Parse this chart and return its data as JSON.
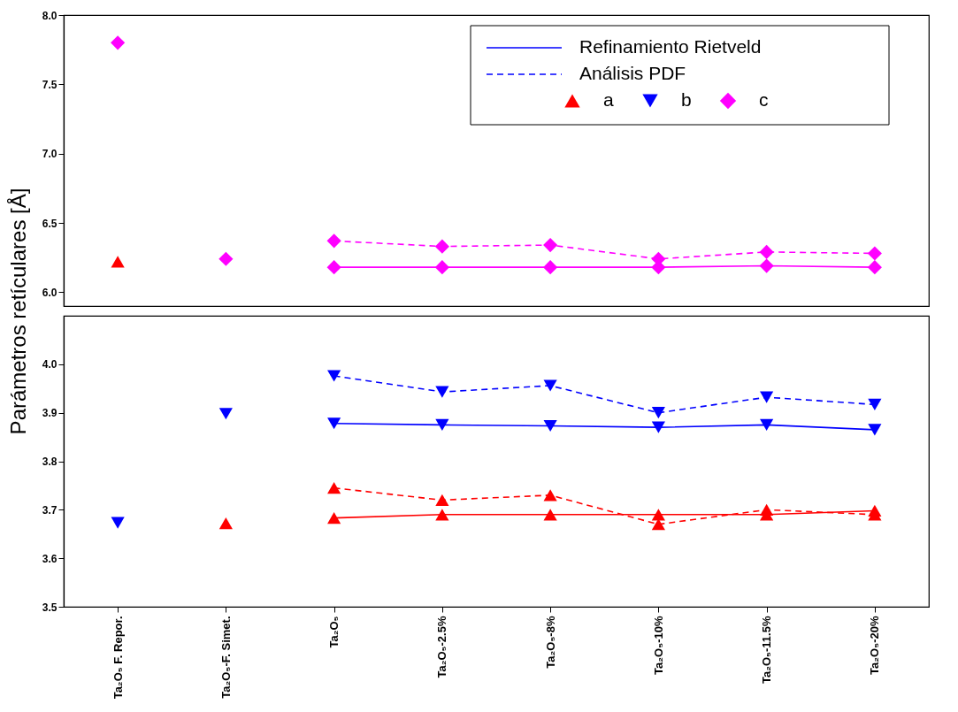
{
  "chart_data": [
    {
      "type": "scatter",
      "categories": [
        "Ta₂O₅ F. Repor.",
        "Ta₂O₅-F. Simet.",
        "Ta₂O₅",
        "Ta₂O₅-2.5%",
        "Ta₂O₅-8%",
        "Ta₂O₅-10%",
        "Ta₂O₅-11.5%",
        "Ta₂O₅-20%"
      ],
      "ylim": [
        5.9,
        8.0
      ],
      "yticks": [
        {
          "value": 6,
          "label": "6.0"
        },
        6.5,
        {
          "value": 7,
          "label": "7.0"
        },
        7.5,
        {
          "value": 8,
          "label": "8.0"
        }
      ],
      "tick_labels": "y",
      "legend": "top right",
      "series": [
        {
          "type": "line",
          "line_style": "solid",
          "color": "#ff00ff",
          "values": [
            null,
            null,
            6.18,
            6.18,
            6.18,
            6.18,
            6.19,
            6.18
          ]
        },
        {
          "type": "line",
          "line_style": "dashed",
          "color": "#ff00ff",
          "values": [
            null,
            null,
            6.37,
            6.33,
            6.34,
            6.24,
            6.29,
            6.28
          ]
        },
        {
          "type": "scatter",
          "marker": "triangle",
          "color": "#ff0000",
          "x": [
            "Ta₂O₅ F. Repor."
          ],
          "values": [
            6.22
          ]
        },
        {
          "name": "c",
          "type": "scatter",
          "marker": "diamond",
          "color": "#ff00ff",
          "x": [
            "Ta₂O₅ F. Repor.",
            "Ta₂O₅-F. Simet.",
            "Ta₂O₅",
            "Ta₂O₅",
            "Ta₂O₅-2.5%",
            "Ta₂O₅-2.5%",
            "Ta₂O₅-8%",
            "Ta₂O₅-8%",
            "Ta₂O₅-10%",
            "Ta₂O₅-10%",
            "Ta₂O₅-11.5%",
            "Ta₂O₅-11.5%",
            "Ta₂O₅-20%",
            "Ta₂O₅-20%"
          ],
          "values": [
            7.8,
            6.24,
            6.37,
            6.18,
            6.33,
            6.18,
            6.34,
            6.18,
            6.24,
            6.18,
            6.29,
            6.19,
            6.28,
            6.18
          ]
        }
      ]
    },
    {
      "type": "scatter",
      "categories": [
        "Ta₂O₅ F. Repor.",
        "Ta₂O₅-F. Simet.",
        "Ta₂O₅",
        "Ta₂O₅-2.5%",
        "Ta₂O₅-8%",
        "Ta₂O₅-10%",
        "Ta₂O₅-11.5%",
        "Ta₂O₅-20%"
      ],
      "ylabel": "Parámetros retículares [Å]",
      "legend": "top right",
      "ylim": [
        3.5,
        4.1
      ],
      "yticks": [
        3.5,
        3.6,
        3.7,
        3.8,
        3.9,
        {
          "value": 4,
          "label": "4.0"
        }
      ],
      "series": [
        {
          "name": "Refinamiento Rietveld",
          "type": "line",
          "line_style": "solid",
          "color": "#0000ff",
          "values": [
            null,
            null,
            3.878,
            3.875,
            3.873,
            3.87,
            3.875,
            3.865
          ]
        },
        {
          "name": "Análisis PDF",
          "type": "line",
          "line_style": "dashed",
          "color": "#0000ff",
          "values": [
            null,
            null,
            3.976,
            3.943,
            3.956,
            3.9,
            3.932,
            3.917
          ]
        },
        {
          "type": "line",
          "line_style": "solid",
          "color": "#ff0000",
          "values": [
            null,
            null,
            3.683,
            3.69,
            3.69,
            3.69,
            3.69,
            3.698
          ]
        },
        {
          "type": "line",
          "line_style": "dashed",
          "color": "#ff0000",
          "values": [
            null,
            null,
            3.745,
            3.72,
            3.73,
            3.67,
            3.7,
            3.69
          ]
        },
        {
          "name": "a",
          "type": "scatter",
          "marker": "triangle",
          "color": "#ff0000",
          "x": [
            "Ta₂O₅-F. Simet.",
            "Ta₂O₅",
            "Ta₂O₅",
            "Ta₂O₅-2.5%",
            "Ta₂O₅-2.5%",
            "Ta₂O₅-8%",
            "Ta₂O₅-8%",
            "Ta₂O₅-10%",
            "Ta₂O₅-10%",
            "Ta₂O₅-11.5%",
            "Ta₂O₅-11.5%",
            "Ta₂O₅-20%",
            "Ta₂O₅-20%"
          ],
          "values": [
            3.672,
            3.745,
            3.683,
            3.72,
            3.69,
            3.73,
            3.69,
            3.67,
            3.69,
            3.7,
            3.69,
            3.69,
            3.698
          ]
        },
        {
          "name": "b",
          "type": "scatter",
          "marker": "triangle-down",
          "color": "#0000ff",
          "x": [
            "Ta₂O₅ F. Repor.",
            "Ta₂O₅-F. Simet.",
            "Ta₂O₅",
            "Ta₂O₅",
            "Ta₂O₅-2.5%",
            "Ta₂O₅-2.5%",
            "Ta₂O₅-8%",
            "Ta₂O₅-8%",
            "Ta₂O₅-10%",
            "Ta₂O₅-10%",
            "Ta₂O₅-11.5%",
            "Ta₂O₅-11.5%",
            "Ta₂O₅-20%",
            "Ta₂O₅-20%"
          ],
          "values": [
            3.673,
            3.898,
            3.976,
            3.878,
            3.943,
            3.875,
            3.956,
            3.873,
            3.9,
            3.87,
            3.932,
            3.875,
            3.917,
            3.865
          ]
        }
      ]
    }
  ]
}
